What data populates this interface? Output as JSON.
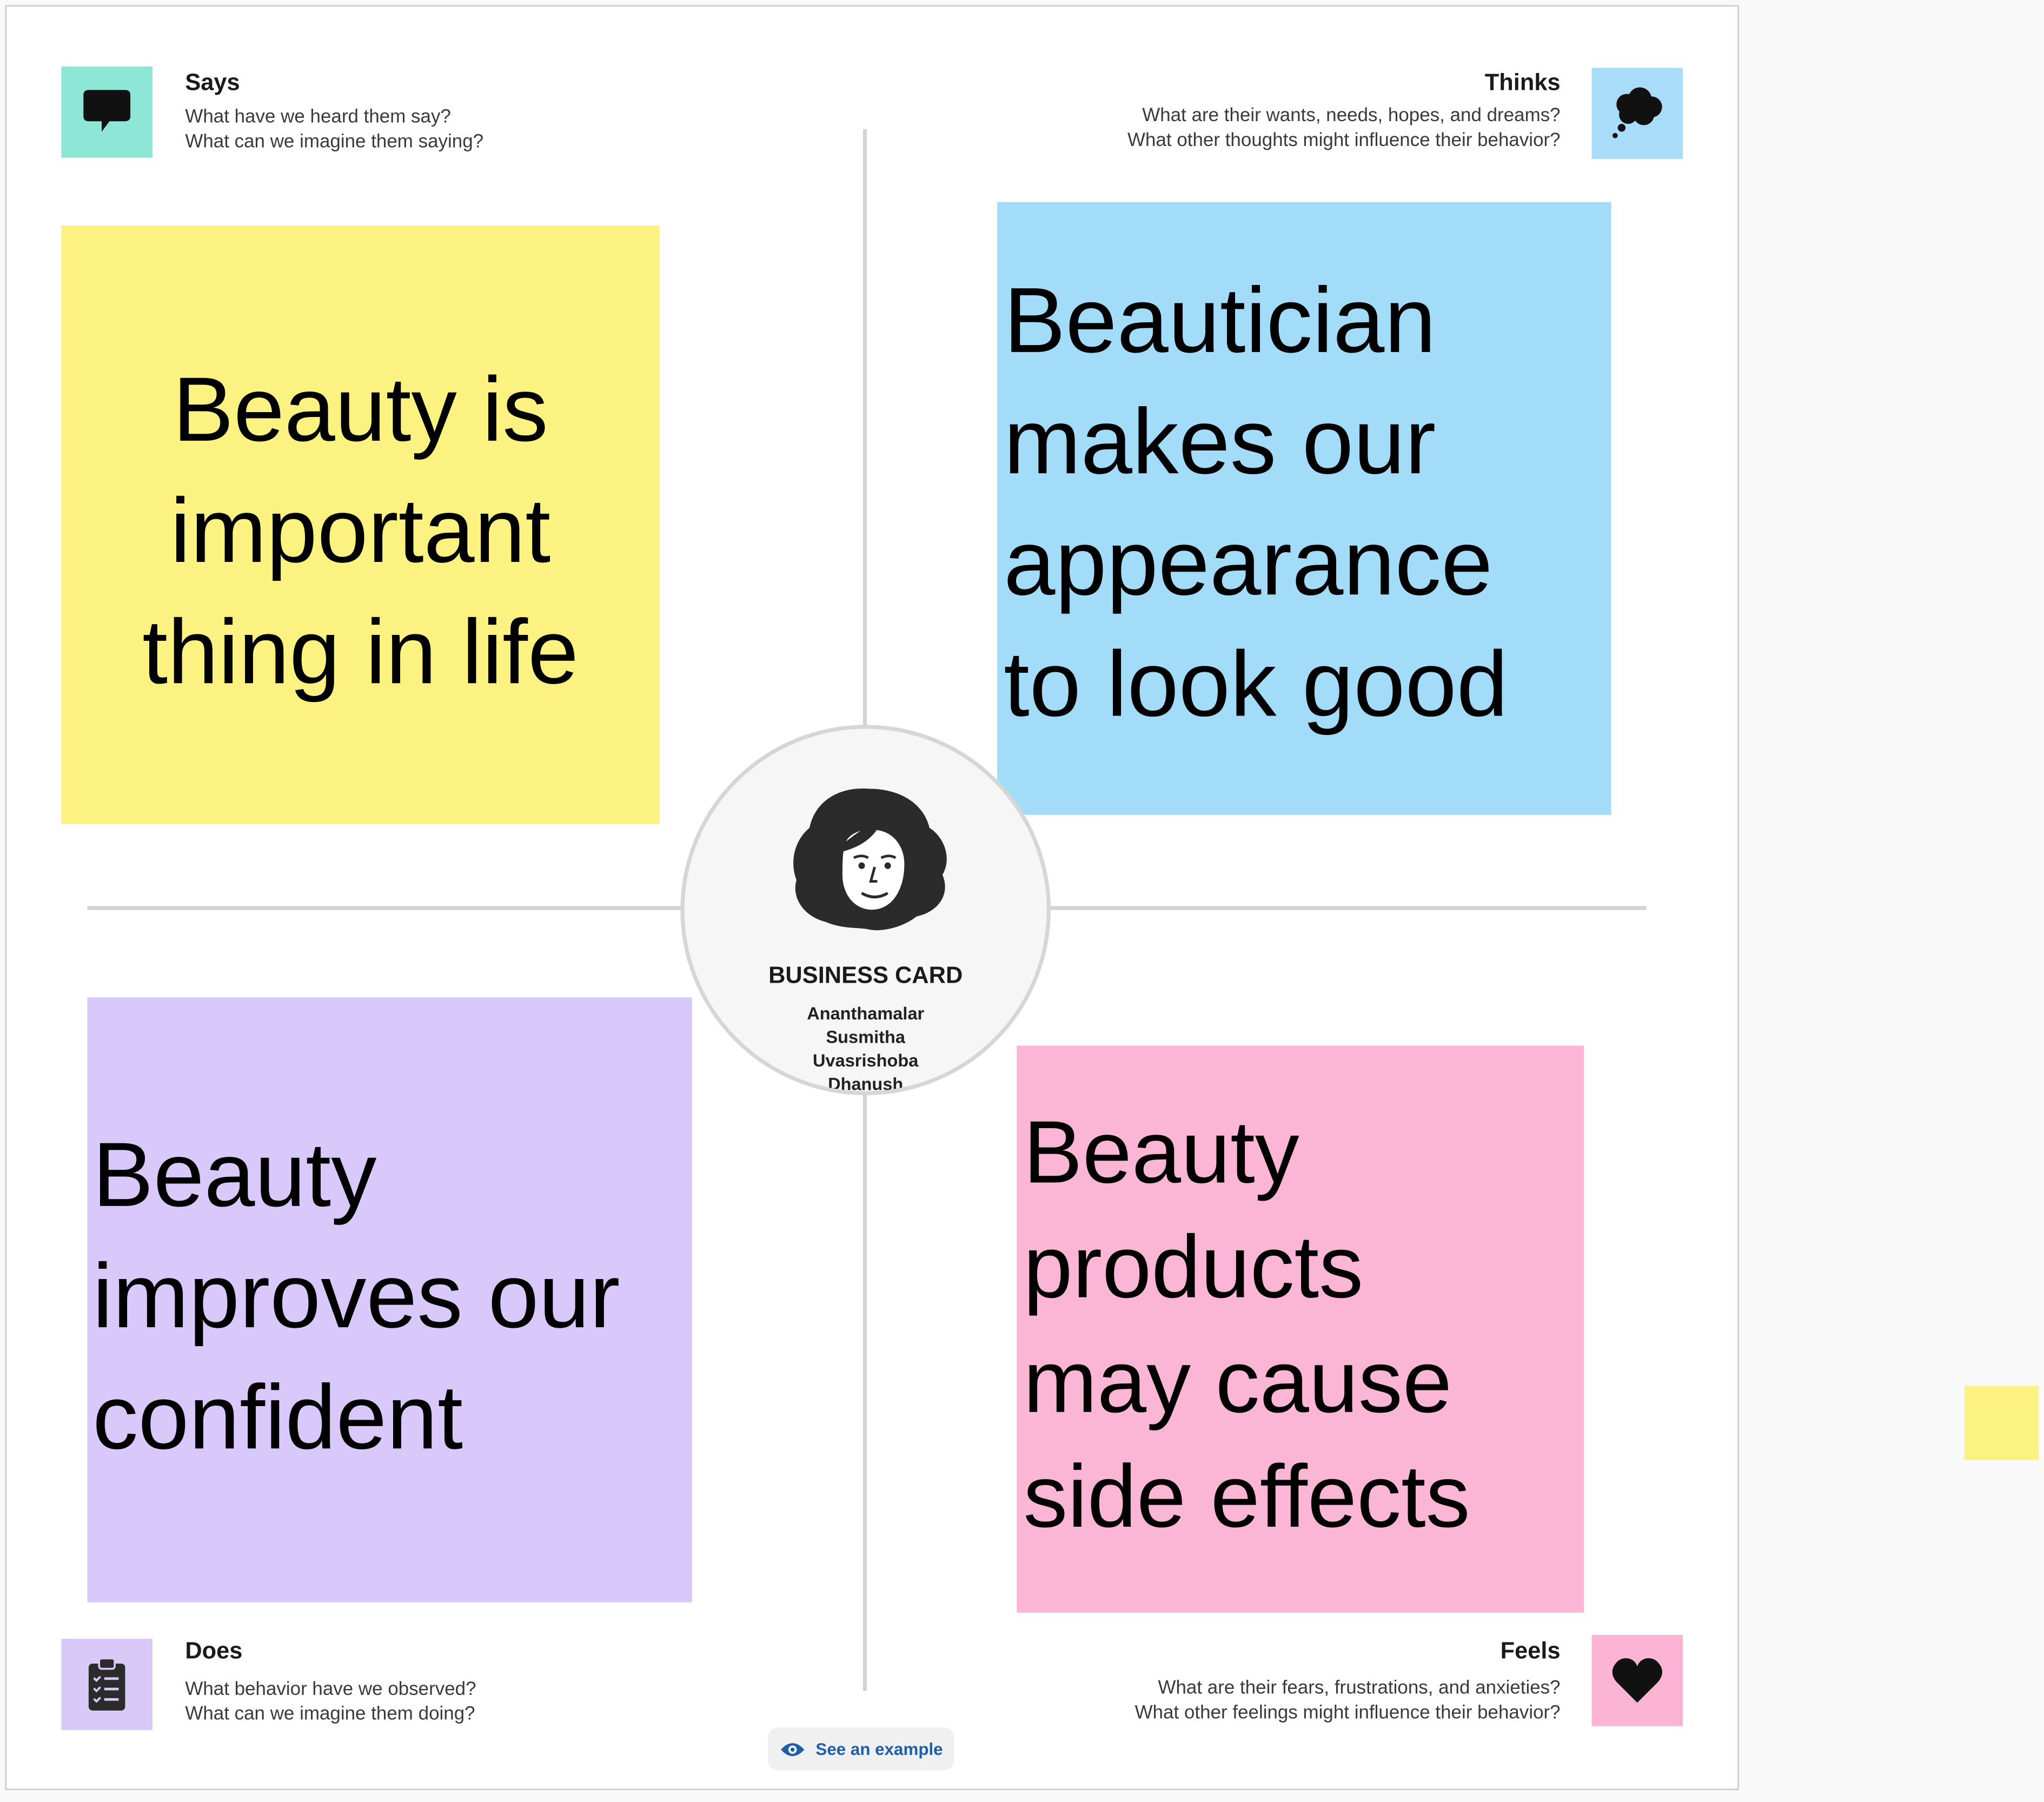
{
  "quadrants": {
    "says": {
      "heading": "Says",
      "sub1": "What have we heard them say?",
      "sub2": "What can we imagine them saying?",
      "icon": "speech-bubble-icon",
      "color": "#8ee6d6"
    },
    "thinks": {
      "heading": "Thinks",
      "sub1": "What are their wants, needs, hopes, and dreams?",
      "sub2": "What other thoughts might influence their behavior?",
      "icon": "thought-cloud-icon",
      "color": "#a9dcf9"
    },
    "does": {
      "heading": "Does",
      "sub1": "What behavior have we observed?",
      "sub2": "What can we imagine them doing?",
      "icon": "clipboard-checklist-icon",
      "color": "#d8c9f7"
    },
    "feels": {
      "heading": "Feels",
      "sub1": "What are their fears, frustrations, and anxieties?",
      "sub2": "What other feelings might influence their behavior?",
      "icon": "heart-icon",
      "color": "#fbb4d4"
    }
  },
  "stickies": {
    "says": {
      "lines": [
        "Beauty is",
        "important",
        "thing in life"
      ],
      "color": "#fbf281"
    },
    "thinks": {
      "lines": [
        "Beautician",
        "makes our",
        "appearance",
        "to look good"
      ],
      "color": "#a3dcf9"
    },
    "does": {
      "lines": [
        "Beauty",
        "improves our",
        "confident"
      ],
      "color": "#d9c9fb"
    },
    "feels": {
      "lines": [
        "Beauty",
        "products",
        "may cause",
        "side effects"
      ],
      "color": "#fbb5d5"
    }
  },
  "persona": {
    "title": "BUSINESS CARD",
    "names": [
      "Ananthamalar",
      "Susmitha",
      "Uvasrishoba",
      "Dhanush"
    ],
    "icon": "woman-avatar-icon"
  },
  "example_button": {
    "label": "See an example",
    "icon": "eye-icon",
    "color": "#1f5fa8"
  },
  "side_sticky": {
    "color": "#fbf281"
  }
}
